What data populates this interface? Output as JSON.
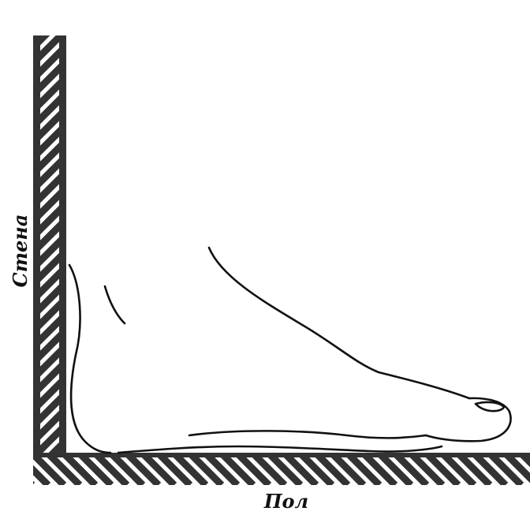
{
  "labels": {
    "wall": "Стена",
    "floor": "Пол"
  },
  "colors": {
    "hatch": "#333333",
    "outline": "#111111",
    "background": "#ffffff"
  }
}
